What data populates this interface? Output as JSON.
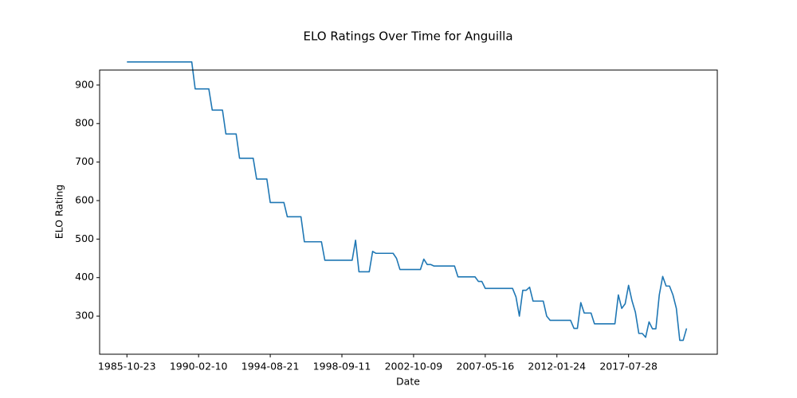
{
  "chart_data": {
    "type": "line",
    "title": "ELO Ratings Over Time for Anguilla",
    "x_label": "Date",
    "y_label": "ELO Rating",
    "series": [
      {
        "name": "Anguilla",
        "color": "#1f77b4",
        "values": [
          960,
          960,
          960,
          960,
          960,
          960,
          960,
          960,
          960,
          960,
          960,
          960,
          960,
          960,
          960,
          960,
          960,
          960,
          960,
          960,
          890,
          890,
          890,
          890,
          890,
          835,
          835,
          835,
          835,
          773,
          773,
          773,
          773,
          710,
          710,
          710,
          710,
          710,
          656,
          656,
          656,
          656,
          595,
          595,
          595,
          595,
          595,
          558,
          558,
          558,
          558,
          558,
          493,
          493,
          493,
          493,
          493,
          493,
          445,
          445,
          445,
          445,
          445,
          445,
          445,
          445,
          445,
          497,
          415,
          415,
          415,
          415,
          468,
          463,
          463,
          463,
          463,
          463,
          463,
          450,
          421,
          421,
          421,
          421,
          421,
          421,
          421,
          448,
          434,
          434,
          430,
          430,
          430,
          430,
          430,
          430,
          430,
          402,
          402,
          402,
          402,
          402,
          402,
          390,
          390,
          372,
          372,
          372,
          372,
          372,
          372,
          372,
          372,
          372,
          350,
          300,
          367,
          367,
          375,
          339,
          339,
          339,
          339,
          300,
          289,
          289,
          289,
          289,
          289,
          289,
          289,
          268,
          268,
          335,
          308,
          308,
          308,
          280,
          280,
          280,
          280,
          280,
          280,
          280,
          355,
          320,
          332,
          380,
          340,
          310,
          255,
          255,
          245,
          285,
          267,
          267,
          355,
          403,
          378,
          378,
          355,
          320,
          237,
          237,
          268
        ]
      }
    ],
    "xlim": [
      -8,
      173
    ],
    "xticks": [
      {
        "value": 0,
        "label": "1985-10-23"
      },
      {
        "value": 21,
        "label": "1990-02-10"
      },
      {
        "value": 42,
        "label": "1994-08-21"
      },
      {
        "value": 63,
        "label": "1998-09-11"
      },
      {
        "value": 84,
        "label": "2002-10-09"
      },
      {
        "value": 105,
        "label": "2007-05-16"
      },
      {
        "value": 126,
        "label": "2012-01-24"
      },
      {
        "value": 147,
        "label": "2017-07-28"
      }
    ],
    "ylim": [
      201,
      939
    ],
    "yticks": [
      300,
      400,
      500,
      600,
      700,
      800,
      900
    ],
    "grid": false
  }
}
